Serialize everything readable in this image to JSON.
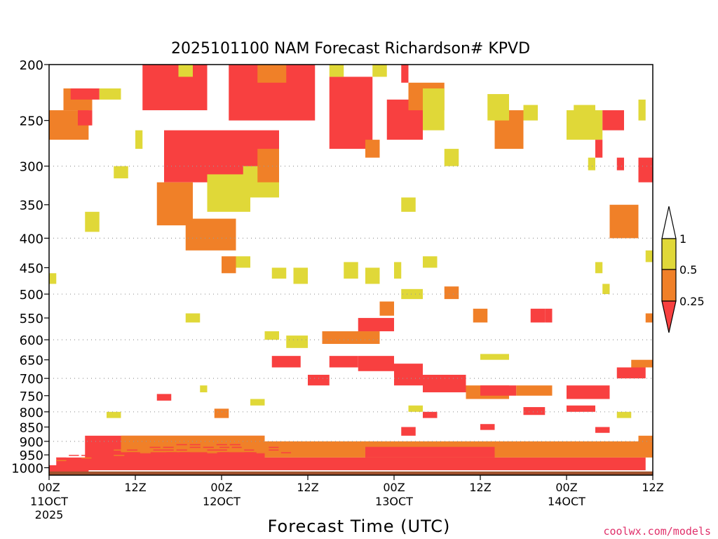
{
  "chart_data": {
    "type": "heatmap",
    "title": "2025101100 NAM Forecast Richardson# KPVD",
    "xlabel": "Forecast Time (UTC)",
    "ylabel": "",
    "credit": "coolwx.com/models",
    "y_scale": "log-pressure",
    "ylim": [
      1030,
      200
    ],
    "xlim_hours": [
      0,
      84
    ],
    "y_ticks": [
      200,
      250,
      300,
      350,
      400,
      450,
      500,
      550,
      600,
      650,
      700,
      750,
      800,
      850,
      900,
      950,
      1000
    ],
    "y_gridlines": [
      300,
      400,
      500,
      600,
      700,
      800,
      900
    ],
    "x_ticks": [
      {
        "hour": 0,
        "label": "00Z",
        "date": "11OCT",
        "year": "2025"
      },
      {
        "hour": 12,
        "label": "12Z",
        "date": "",
        "year": ""
      },
      {
        "hour": 24,
        "label": "00Z",
        "date": "12OCT",
        "year": ""
      },
      {
        "hour": 36,
        "label": "12Z",
        "date": "",
        "year": ""
      },
      {
        "hour": 48,
        "label": "00Z",
        "date": "13OCT",
        "year": ""
      },
      {
        "hour": 60,
        "label": "12Z",
        "date": "",
        "year": ""
      },
      {
        "hour": 72,
        "label": "00Z",
        "date": "14OCT",
        "year": ""
      },
      {
        "hour": 84,
        "label": "12Z",
        "date": "",
        "year": ""
      }
    ],
    "legend": {
      "placement": "right",
      "levels": [
        "0.25",
        "0.5",
        "1"
      ],
      "bins": [
        {
          "range": "<0.25",
          "color": "#f84040"
        },
        {
          "range": "0.25-0.5",
          "color": "#f08028"
        },
        {
          "range": "0.5-1",
          "color": "#e0d838"
        }
      ]
    },
    "colors": {
      "ri_lt_025": "#f84040",
      "ri_025_05": "#f08028",
      "ri_05_1": "#e0d838",
      "surface": "#a0522d"
    },
    "cells": [
      {
        "h0": 0,
        "h1": 5.5,
        "p0": 1030,
        "p1": 990,
        "c": "ri_lt_025"
      },
      {
        "h0": 1,
        "h1": 83,
        "p0": 1010,
        "p1": 960,
        "c": "ri_lt_025"
      },
      {
        "h0": 5,
        "h1": 30,
        "p0": 965,
        "p1": 880,
        "c": "ri_lt_025"
      },
      {
        "h0": 10,
        "h1": 30,
        "p0": 940,
        "p1": 880,
        "c": "ri_025_05"
      },
      {
        "h0": 30,
        "h1": 84,
        "p0": 960,
        "p1": 900,
        "c": "ri_025_05"
      },
      {
        "h0": 44,
        "h1": 62,
        "p0": 960,
        "p1": 920,
        "c": "ri_lt_025"
      },
      {
        "h0": 2,
        "h1": 6,
        "p0": 240,
        "p1": 220,
        "c": "ri_025_05"
      },
      {
        "h0": 0,
        "h1": 5.5,
        "p0": 270,
        "p1": 240,
        "c": "ri_025_05"
      },
      {
        "h0": 4,
        "h1": 6,
        "p0": 255,
        "p1": 240,
        "c": "ri_lt_025"
      },
      {
        "h0": 13,
        "h1": 22,
        "p0": 240,
        "p1": 200,
        "c": "ri_lt_025"
      },
      {
        "h0": 16,
        "h1": 32,
        "p0": 320,
        "p1": 260,
        "c": "ri_lt_025"
      },
      {
        "h0": 25,
        "h1": 37,
        "p0": 250,
        "p1": 200,
        "c": "ri_lt_025"
      },
      {
        "h0": 15,
        "h1": 20,
        "p0": 380,
        "p1": 320,
        "c": "ri_025_05"
      },
      {
        "h0": 19,
        "h1": 26,
        "p0": 420,
        "p1": 370,
        "c": "ri_025_05"
      },
      {
        "h0": 22,
        "h1": 28,
        "p0": 360,
        "p1": 310,
        "c": "ri_05_1"
      },
      {
        "h0": 27,
        "h1": 32,
        "p0": 340,
        "p1": 300,
        "c": "ri_05_1"
      },
      {
        "h0": 29,
        "h1": 32,
        "p0": 320,
        "p1": 280,
        "c": "ri_025_05"
      },
      {
        "h0": 39,
        "h1": 45,
        "p0": 280,
        "p1": 210,
        "c": "ri_lt_025"
      },
      {
        "h0": 47,
        "h1": 52,
        "p0": 270,
        "p1": 230,
        "c": "ri_lt_025"
      },
      {
        "h0": 50,
        "h1": 55,
        "p0": 240,
        "p1": 215,
        "c": "ri_025_05"
      },
      {
        "h0": 29,
        "h1": 33,
        "p0": 215,
        "p1": 200,
        "c": "ri_025_05"
      },
      {
        "h0": 62,
        "h1": 66,
        "p0": 280,
        "p1": 240,
        "c": "ri_025_05"
      },
      {
        "h0": 72,
        "h1": 77,
        "p0": 270,
        "p1": 240,
        "c": "ri_05_1"
      },
      {
        "h0": 77,
        "h1": 80,
        "p0": 260,
        "p1": 240,
        "c": "ri_lt_025"
      },
      {
        "h0": 82,
        "h1": 84,
        "p0": 320,
        "p1": 290,
        "c": "ri_lt_025"
      },
      {
        "h0": 78,
        "h1": 82,
        "p0": 400,
        "p1": 350,
        "c": "ri_025_05"
      },
      {
        "h0": 38,
        "h1": 46,
        "p0": 610,
        "p1": 580,
        "c": "ri_025_05"
      },
      {
        "h0": 43,
        "h1": 48,
        "p0": 580,
        "p1": 550,
        "c": "ri_lt_025"
      },
      {
        "h0": 46,
        "h1": 48,
        "p0": 545,
        "p1": 515,
        "c": "ri_025_05"
      },
      {
        "h0": 31,
        "h1": 35,
        "p0": 670,
        "p1": 640,
        "c": "ri_lt_025"
      },
      {
        "h0": 36,
        "h1": 39,
        "p0": 720,
        "p1": 690,
        "c": "ri_lt_025"
      },
      {
        "h0": 39,
        "h1": 43,
        "p0": 670,
        "p1": 640,
        "c": "ri_lt_025"
      },
      {
        "h0": 43,
        "h1": 48,
        "p0": 680,
        "p1": 640,
        "c": "ri_lt_025"
      },
      {
        "h0": 48,
        "h1": 52,
        "p0": 720,
        "p1": 660,
        "c": "ri_lt_025"
      },
      {
        "h0": 52,
        "h1": 58,
        "p0": 740,
        "p1": 690,
        "c": "ri_lt_025"
      },
      {
        "h0": 58,
        "h1": 64,
        "p0": 760,
        "p1": 720,
        "c": "ri_025_05"
      },
      {
        "h0": 60,
        "h1": 65,
        "p0": 750,
        "p1": 720,
        "c": "ri_lt_025"
      },
      {
        "h0": 65,
        "h1": 70,
        "p0": 750,
        "p1": 720,
        "c": "ri_025_05"
      },
      {
        "h0": 72,
        "h1": 78,
        "p0": 760,
        "p1": 720,
        "c": "ri_lt_025"
      },
      {
        "h0": 79,
        "h1": 83,
        "p0": 700,
        "p1": 670,
        "c": "ri_lt_025"
      },
      {
        "h0": 81,
        "h1": 84,
        "p0": 670,
        "p1": 650,
        "c": "ri_025_05"
      },
      {
        "h0": 55,
        "h1": 57,
        "p0": 510,
        "p1": 485,
        "c": "ri_025_05"
      },
      {
        "h0": 59,
        "h1": 61,
        "p0": 560,
        "p1": 530,
        "c": "ri_025_05"
      },
      {
        "h0": 67,
        "h1": 69,
        "p0": 560,
        "p1": 530,
        "c": "ri_lt_025"
      },
      {
        "h0": 69,
        "h1": 70,
        "p0": 560,
        "p1": 530,
        "c": "ri_lt_025"
      },
      {
        "h0": 24,
        "h1": 26,
        "p0": 460,
        "p1": 430,
        "c": "ri_025_05"
      },
      {
        "h0": 15,
        "h1": 17,
        "p0": 765,
        "p1": 745,
        "c": "ri_lt_025"
      },
      {
        "h0": 23,
        "h1": 25,
        "p0": 820,
        "p1": 790,
        "c": "ri_025_05"
      },
      {
        "h0": 49,
        "h1": 51,
        "p0": 880,
        "p1": 850,
        "c": "ri_lt_025"
      },
      {
        "h0": 66,
        "h1": 69,
        "p0": 810,
        "p1": 785,
        "c": "ri_lt_025"
      },
      {
        "h0": 72,
        "h1": 76,
        "p0": 800,
        "p1": 780,
        "c": "ri_lt_025"
      },
      {
        "h0": 82,
        "h1": 84,
        "p0": 930,
        "p1": 880,
        "c": "ri_025_05"
      },
      {
        "h0": 3,
        "h1": 7,
        "p0": 230,
        "p1": 220,
        "c": "ri_lt_025"
      },
      {
        "h0": 0,
        "h1": 1,
        "p0": 480,
        "p1": 460,
        "c": "ri_05_1"
      },
      {
        "h0": 5,
        "h1": 7,
        "p0": 390,
        "p1": 360,
        "c": "ri_05_1"
      },
      {
        "h0": 7,
        "h1": 10,
        "p0": 230,
        "p1": 220,
        "c": "ri_05_1"
      },
      {
        "h0": 9,
        "h1": 11,
        "p0": 315,
        "p1": 300,
        "c": "ri_05_1"
      },
      {
        "h0": 12,
        "h1": 13,
        "p0": 280,
        "p1": 260,
        "c": "ri_05_1"
      },
      {
        "h0": 18,
        "h1": 20,
        "p0": 210,
        "p1": 200,
        "c": "ri_05_1"
      },
      {
        "h0": 19,
        "h1": 21,
        "p0": 560,
        "p1": 540,
        "c": "ri_05_1"
      },
      {
        "h0": 26,
        "h1": 28,
        "p0": 450,
        "p1": 430,
        "c": "ri_05_1"
      },
      {
        "h0": 31,
        "h1": 33,
        "p0": 470,
        "p1": 450,
        "c": "ri_05_1"
      },
      {
        "h0": 39,
        "h1": 41,
        "p0": 210,
        "p1": 200,
        "c": "ri_05_1"
      },
      {
        "h0": 41,
        "h1": 43,
        "p0": 470,
        "p1": 440,
        "c": "ri_05_1"
      },
      {
        "h0": 44,
        "h1": 46,
        "p0": 290,
        "p1": 270,
        "c": "ri_025_05"
      },
      {
        "h0": 44,
        "h1": 46,
        "p0": 480,
        "p1": 450,
        "c": "ri_05_1"
      },
      {
        "h0": 45,
        "h1": 47,
        "p0": 210,
        "p1": 200,
        "c": "ri_05_1"
      },
      {
        "h0": 48,
        "h1": 49,
        "p0": 470,
        "p1": 440,
        "c": "ri_05_1"
      },
      {
        "h0": 49,
        "h1": 50,
        "p0": 215,
        "p1": 200,
        "c": "ri_lt_025"
      },
      {
        "h0": 49,
        "h1": 51,
        "p0": 360,
        "p1": 340,
        "c": "ri_05_1"
      },
      {
        "h0": 49,
        "h1": 52,
        "p0": 510,
        "p1": 490,
        "c": "ri_05_1"
      },
      {
        "h0": 52,
        "h1": 54,
        "p0": 450,
        "p1": 430,
        "c": "ri_05_1"
      },
      {
        "h0": 52,
        "h1": 55,
        "p0": 260,
        "p1": 220,
        "c": "ri_05_1"
      },
      {
        "h0": 55,
        "h1": 57,
        "p0": 300,
        "p1": 280,
        "c": "ri_05_1"
      },
      {
        "h0": 60,
        "h1": 64,
        "p0": 650,
        "p1": 635,
        "c": "ri_05_1"
      },
      {
        "h0": 61,
        "h1": 64,
        "p0": 250,
        "p1": 225,
        "c": "ri_05_1"
      },
      {
        "h0": 66,
        "h1": 68,
        "p0": 250,
        "p1": 235,
        "c": "ri_05_1"
      },
      {
        "h0": 73,
        "h1": 76,
        "p0": 245,
        "p1": 235,
        "c": "ri_05_1"
      },
      {
        "h0": 75,
        "h1": 76,
        "p0": 305,
        "p1": 290,
        "c": "ri_05_1"
      },
      {
        "h0": 76,
        "h1": 77,
        "p0": 290,
        "p1": 270,
        "c": "ri_lt_025"
      },
      {
        "h0": 76,
        "h1": 77,
        "p0": 460,
        "p1": 440,
        "c": "ri_05_1"
      },
      {
        "h0": 77,
        "h1": 78,
        "p0": 500,
        "p1": 480,
        "c": "ri_05_1"
      },
      {
        "h0": 79,
        "h1": 80,
        "p0": 305,
        "p1": 290,
        "c": "ri_lt_025"
      },
      {
        "h0": 82,
        "h1": 83,
        "p0": 250,
        "p1": 230,
        "c": "ri_05_1"
      },
      {
        "h0": 83,
        "h1": 84,
        "p0": 440,
        "p1": 420,
        "c": "ri_05_1"
      },
      {
        "h0": 83,
        "h1": 84,
        "p0": 560,
        "p1": 540,
        "c": "ri_025_05"
      },
      {
        "h0": 34,
        "h1": 36,
        "p0": 480,
        "p1": 450,
        "c": "ri_05_1"
      },
      {
        "h0": 33,
        "h1": 36,
        "p0": 620,
        "p1": 590,
        "c": "ri_05_1"
      },
      {
        "h0": 30,
        "h1": 32,
        "p0": 600,
        "p1": 580,
        "c": "ri_05_1"
      },
      {
        "h0": 21,
        "h1": 22,
        "p0": 740,
        "p1": 720,
        "c": "ri_05_1"
      },
      {
        "h0": 8,
        "h1": 10,
        "p0": 820,
        "p1": 800,
        "c": "ri_05_1"
      },
      {
        "h0": 28,
        "h1": 30,
        "p0": 780,
        "p1": 760,
        "c": "ri_05_1"
      },
      {
        "h0": 50,
        "h1": 52,
        "p0": 800,
        "p1": 780,
        "c": "ri_05_1"
      },
      {
        "h0": 52,
        "h1": 54,
        "p0": 820,
        "p1": 800,
        "c": "ri_lt_025"
      },
      {
        "h0": 60,
        "h1": 62,
        "p0": 860,
        "p1": 840,
        "c": "ri_lt_025"
      },
      {
        "h0": 79,
        "h1": 81,
        "p0": 820,
        "p1": 800,
        "c": "ri_05_1"
      },
      {
        "h0": 76,
        "h1": 78,
        "p0": 870,
        "p1": 850,
        "c": "ri_lt_025"
      }
    ],
    "noise_cells": [
      {
        "h0": 1,
        "h1": 8,
        "p0": 980,
        "p1": 950
      },
      {
        "h0": 9,
        "h1": 20,
        "p0": 960,
        "p1": 930
      },
      {
        "h0": 14,
        "h1": 27,
        "p0": 940,
        "p1": 910
      },
      {
        "h0": 22,
        "h1": 34,
        "p0": 950,
        "p1": 920
      }
    ]
  }
}
